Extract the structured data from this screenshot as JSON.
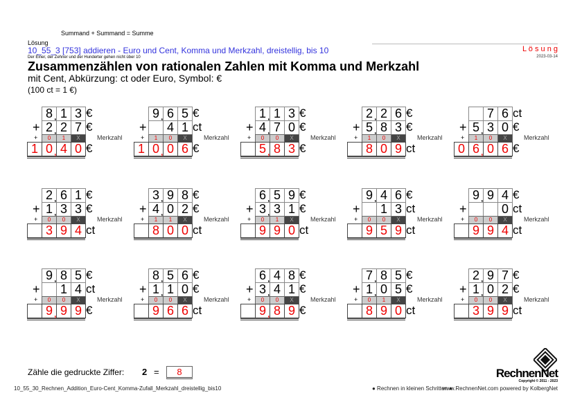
{
  "header": {
    "formula": "Summand + Summand = Summe",
    "mode": "Lösung",
    "code_line": "10_55_3   [753]   addieren - Euro und Cent, Komma und Merkzahl, dreistellig, bis 10",
    "note": "Der Einer, der Zehner und der Hunderter gehen nicht über 10",
    "title": "Zusammenzählen von rationalen Zahlen mit Komma und Merkzahl",
    "subtitle": "mit Cent, Abkürzung: ct oder Euro, Symbol: €",
    "conversion": "(100 ct = 1 €)",
    "solution_label": "L ö s u n g",
    "date": "2023-03-14"
  },
  "labels": {
    "plus": "+",
    "merk_plus": "+",
    "merkzahl": "Merkzahl"
  },
  "colors": {
    "answer": "#ee0000",
    "link": "#3333dd"
  },
  "problems": [
    {
      "a": [
        "8",
        "1",
        "3"
      ],
      "ac": true,
      "au": "€",
      "b": [
        "2",
        "2",
        "7"
      ],
      "bc": true,
      "bu": "€",
      "m": [
        "0",
        "1",
        "X"
      ],
      "r": [
        "1",
        "0",
        "4",
        "0"
      ],
      "rc": 1,
      "ru": "€"
    },
    {
      "a": [
        "9",
        "6",
        "5"
      ],
      "ac": true,
      "au": "€",
      "b": [
        "",
        "4",
        "1"
      ],
      "bc": false,
      "bu": "ct",
      "m": [
        "1",
        "0",
        "X"
      ],
      "r": [
        "1",
        "0",
        "0",
        "6"
      ],
      "rc": 1,
      "ru": "€"
    },
    {
      "a": [
        "1",
        "1",
        "3"
      ],
      "ac": true,
      "au": "€",
      "b": [
        "4",
        "7",
        "0"
      ],
      "bc": true,
      "bu": "€",
      "m": [
        "0",
        "0",
        "X"
      ],
      "r": [
        "",
        "5",
        "8",
        "3"
      ],
      "rc": 1,
      "ru": "€"
    },
    {
      "a": [
        "2",
        "2",
        "6"
      ],
      "ac": true,
      "au": "€",
      "b": [
        "5",
        "8",
        "3"
      ],
      "bc": true,
      "bu": "€",
      "m": [
        "1",
        "0",
        "X"
      ],
      "r": [
        "",
        "8",
        "0",
        "9"
      ],
      "rc": -1,
      "ru": "ct"
    },
    {
      "a": [
        "",
        "7",
        "6"
      ],
      "ac": false,
      "au": "ct",
      "b": [
        "5",
        "3",
        "0"
      ],
      "bc": true,
      "bu": "€",
      "m": [
        "1",
        "0",
        "X"
      ],
      "r": [
        "0",
        "6",
        "0",
        "6"
      ],
      "rc": 1,
      "ru": "€"
    },
    {
      "a": [
        "2",
        "6",
        "1"
      ],
      "ac": true,
      "au": "€",
      "b": [
        "1",
        "3",
        "3"
      ],
      "bc": true,
      "bu": "€",
      "m": [
        "0",
        "0",
        "X"
      ],
      "r": [
        "",
        "3",
        "9",
        "4"
      ],
      "rc": -1,
      "ru": "ct"
    },
    {
      "a": [
        "3",
        "9",
        "8"
      ],
      "ac": true,
      "au": "€",
      "b": [
        "4",
        "0",
        "2"
      ],
      "bc": true,
      "bu": "€",
      "m": [
        "1",
        "1",
        "X"
      ],
      "r": [
        "",
        "8",
        "0",
        "0"
      ],
      "rc": -1,
      "ru": "ct"
    },
    {
      "a": [
        "6",
        "5",
        "9"
      ],
      "ac": true,
      "au": "€",
      "b": [
        "3",
        "3",
        "1"
      ],
      "bc": true,
      "bu": "€",
      "m": [
        "0",
        "1",
        "X"
      ],
      "r": [
        "",
        "9",
        "9",
        "0"
      ],
      "rc": -1,
      "ru": "ct"
    },
    {
      "a": [
        "9",
        "4",
        "6"
      ],
      "ac": true,
      "au": "€",
      "b": [
        "",
        "1",
        "3"
      ],
      "bc": false,
      "bu": "ct",
      "m": [
        "0",
        "0",
        "X"
      ],
      "r": [
        "",
        "9",
        "5",
        "9"
      ],
      "rc": -1,
      "ru": "ct"
    },
    {
      "a": [
        "9",
        "9",
        "4"
      ],
      "ac": true,
      "au": "€",
      "b": [
        "",
        "",
        "0"
      ],
      "bc": false,
      "bu": "ct",
      "m": [
        "0",
        "0",
        "X"
      ],
      "r": [
        "",
        "9",
        "9",
        "4"
      ],
      "rc": -1,
      "ru": "ct"
    },
    {
      "a": [
        "9",
        "8",
        "5"
      ],
      "ac": true,
      "au": "€",
      "b": [
        "",
        "1",
        "4"
      ],
      "bc": false,
      "bu": "ct",
      "m": [
        "0",
        "0",
        "X"
      ],
      "r": [
        "",
        "9",
        "9",
        "9"
      ],
      "rc": 1,
      "ru": "€"
    },
    {
      "a": [
        "8",
        "5",
        "6"
      ],
      "ac": true,
      "au": "€",
      "b": [
        "1",
        "1",
        "0"
      ],
      "bc": true,
      "bu": "€",
      "m": [
        "0",
        "0",
        "X"
      ],
      "r": [
        "",
        "9",
        "6",
        "6"
      ],
      "rc": -1,
      "ru": "ct"
    },
    {
      "a": [
        "6",
        "4",
        "8"
      ],
      "ac": true,
      "au": "€",
      "b": [
        "3",
        "4",
        "1"
      ],
      "bc": true,
      "bu": "€",
      "m": [
        "0",
        "0",
        "X"
      ],
      "r": [
        "",
        "9",
        "8",
        "9"
      ],
      "rc": 1,
      "ru": "€"
    },
    {
      "a": [
        "7",
        "8",
        "5"
      ],
      "ac": true,
      "au": "€",
      "b": [
        "1",
        "0",
        "5"
      ],
      "bc": true,
      "bu": "€",
      "m": [
        "0",
        "1",
        "X"
      ],
      "r": [
        "",
        "8",
        "9",
        "0"
      ],
      "rc": -1,
      "ru": "ct"
    },
    {
      "a": [
        "2",
        "9",
        "7"
      ],
      "ac": true,
      "au": "€",
      "b": [
        "1",
        "0",
        "2"
      ],
      "bc": true,
      "bu": "€",
      "m": [
        "0",
        "0",
        "X"
      ],
      "r": [
        "",
        "3",
        "9",
        "9"
      ],
      "rc": -1,
      "ru": "ct"
    }
  ],
  "count": {
    "label": "Zähle die gedruckte Ziffer:",
    "digit": "2",
    "equals": "=",
    "answer": "8"
  },
  "footer": {
    "file": "10_55_30_Rechnen_Addition_Euro-Cent_Komma-Zufall_Merkzahl_dreistellig_bis10",
    "slogan": "● Rechnen in kleinen Schritten ●",
    "site": "www.RechnenNet.com powered by KolbergNet",
    "logo_text": "RechnenNet",
    "copyright": "Copyright © 2011 - 2023"
  }
}
